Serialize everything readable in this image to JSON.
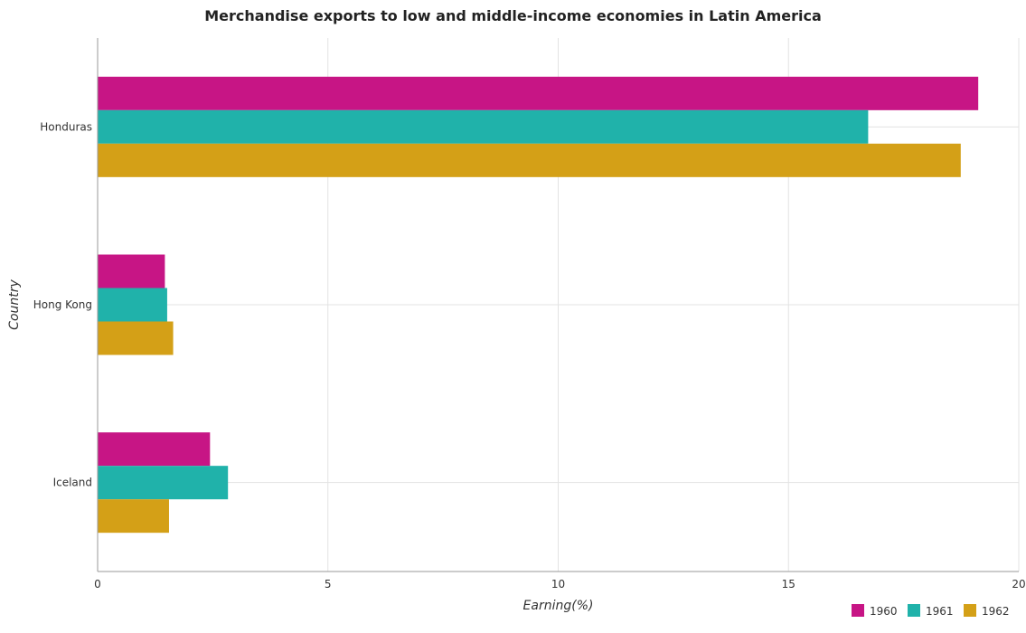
{
  "chart_data": {
    "type": "bar",
    "orientation": "horizontal",
    "title": "Merchandise exports to low and middle-income economies in Latin America",
    "xlabel": "Earning(%)",
    "ylabel": "Country",
    "categories": [
      "Honduras",
      "Hong Kong",
      "Iceland"
    ],
    "series": [
      {
        "name": "1960",
        "color": "#c71585",
        "values": [
          19.12,
          1.46,
          2.44
        ]
      },
      {
        "name": "1961",
        "color": "#20b2aa",
        "values": [
          16.73,
          1.51,
          2.83
        ]
      },
      {
        "name": "1962",
        "color": "#d4a017",
        "values": [
          18.74,
          1.64,
          1.55
        ]
      }
    ],
    "xlim": [
      0,
      20
    ],
    "xticks": [
      0,
      5,
      10,
      15,
      20
    ],
    "grid": true,
    "legend_position": "bottom-right"
  }
}
